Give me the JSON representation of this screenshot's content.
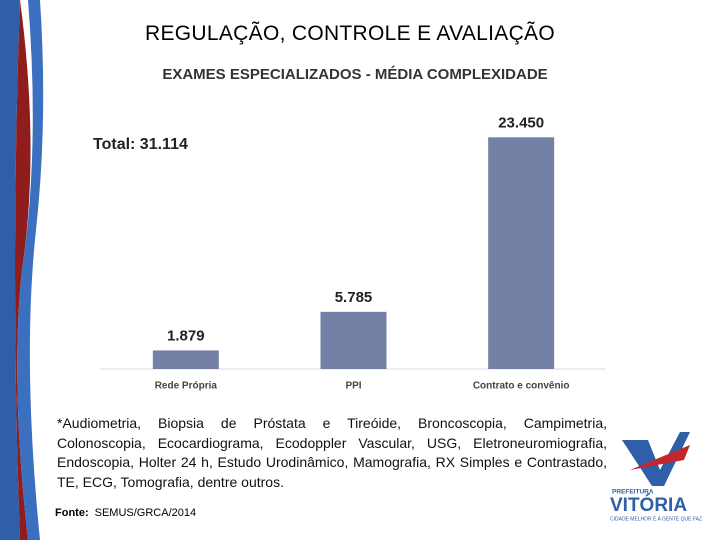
{
  "slide_title": "REGULAÇÃO, CONTROLE E AVALIAÇÃO",
  "chart_data": {
    "type": "bar",
    "title": "EXAMES ESPECIALIZADOS - MÉDIA COMPLEXIDADE",
    "annotation": "Total: 31.114",
    "categories": [
      "Rede Própria",
      "PPI",
      "Contrato e convênio"
    ],
    "values": [
      1879,
      5785,
      23450
    ],
    "value_labels": [
      "1.879",
      "5.785",
      "23.450"
    ],
    "color": "#7480a6",
    "ylim": [
      0,
      25000
    ]
  },
  "footnote": "*Audiometria, Biopsia de Próstata e Tireóide, Broncoscopia, Campimetria, Colonoscopia, Ecocardiograma, Ecodoppler Vascular, USG, Eletroneuromiografia, Endoscopia, Holter 24 h, Estudo Urodinâmico, Mamografia, RX Simples e Contrastado, TE, ECG, Tomografia, dentre outros.",
  "source": {
    "label": "Fonte:",
    "text": "SEMUS/GRCA/2014"
  },
  "logo": {
    "top": "PREFEITURA",
    "name": "VITÓRIA",
    "tagline": "CIDADE MELHOR É A GENTE QUE FAZ"
  }
}
